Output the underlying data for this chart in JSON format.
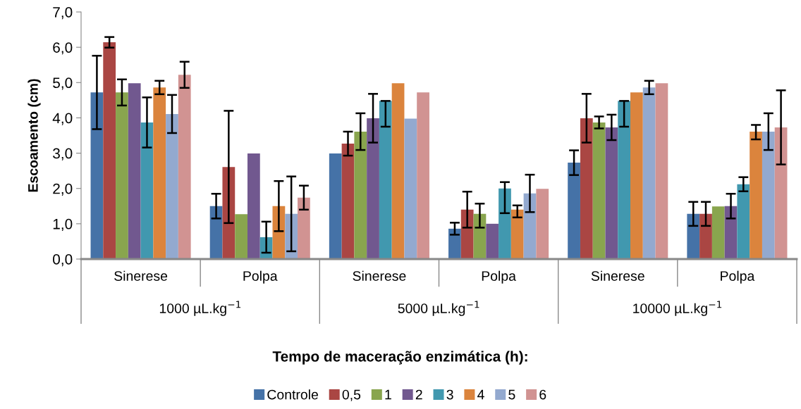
{
  "chart_data": {
    "type": "bar",
    "ylabel": "Escoamento (cm)",
    "xlabel": "Tempo de maceração enzimática (h):",
    "categories": [
      "Sinerese",
      "Polpa",
      "Sinerese",
      "Polpa",
      "Sinerese",
      "Polpa"
    ],
    "annotations": [
      "1000 µL.kg$^{−1}$",
      "5000 µL.kg$^{−1}$",
      "10000 µL.kg$^{−1}$"
    ],
    "ylim": [
      0,
      7
    ],
    "yticks": [
      {
        "value": 0,
        "label": "0,0"
      },
      {
        "value": 1,
        "label": "1,0"
      },
      {
        "value": 2,
        "label": "2,0"
      },
      {
        "value": 3,
        "label": "3,0"
      },
      {
        "value": 4,
        "label": "4,0"
      },
      {
        "value": 5,
        "label": "5,0"
      },
      {
        "value": 6,
        "label": "6,0"
      },
      {
        "value": 7,
        "label": "7,0"
      }
    ],
    "grid": false,
    "legend": "bottom",
    "series": [
      {
        "name": "Controle",
        "color": "#4572a7",
        "values": [
          4.72,
          1.5,
          2.99,
          0.86,
          2.73,
          1.28
        ],
        "errors": [
          1.04,
          0.35,
          null,
          0.17,
          0.35,
          0.34
        ]
      },
      {
        "name": "0,5",
        "color": "#aa4643",
        "values": [
          6.14,
          2.61,
          3.27,
          1.4,
          3.99,
          1.28
        ],
        "errors": [
          0.15,
          1.59,
          0.34,
          0.51,
          0.69,
          0.34
        ]
      },
      {
        "name": "1",
        "color": "#89a54e",
        "values": [
          4.72,
          1.27,
          3.61,
          1.28,
          3.87,
          1.49
        ],
        "errors": [
          0.37,
          null,
          0.52,
          [
            0.89,
            1.57
          ],
          0.17,
          null
        ]
      },
      {
        "name": "2",
        "color": "#71588f",
        "values": [
          4.98,
          2.99,
          3.99,
          1.0,
          3.73,
          1.5
        ],
        "errors": [
          null,
          null,
          0.69,
          null,
          0.36,
          0.35
        ]
      },
      {
        "name": "3",
        "color": "#4198af",
        "values": [
          3.87,
          0.62,
          4.48,
          2.0,
          4.48,
          2.12
        ],
        "errors": [
          0.71,
          0.44,
          [
            3.75,
            4.48
          ],
          [
            1.3,
            2.18
          ],
          [
            3.75,
            4.48
          ],
          0.2
        ]
      },
      {
        "name": "4",
        "color": "#db843d",
        "values": [
          4.86,
          1.5,
          4.98,
          1.4,
          4.72,
          3.61
        ],
        "errors": [
          0.19,
          0.71,
          null,
          [
            1.18,
            1.52
          ],
          null,
          [
            3.39,
            3.8
          ]
        ]
      },
      {
        "name": "5",
        "color": "#93a9cf",
        "values": [
          4.11,
          1.28,
          3.98,
          1.86,
          4.86,
          3.61
        ],
        "errors": [
          0.54,
          1.06,
          null,
          0.53,
          0.19,
          0.52
        ]
      },
      {
        "name": "6",
        "color": "#d19392",
        "values": [
          5.22,
          1.74,
          4.72,
          1.99,
          4.98,
          3.73
        ],
        "errors": [
          0.37,
          0.34,
          null,
          null,
          null,
          1.05
        ]
      }
    ]
  }
}
